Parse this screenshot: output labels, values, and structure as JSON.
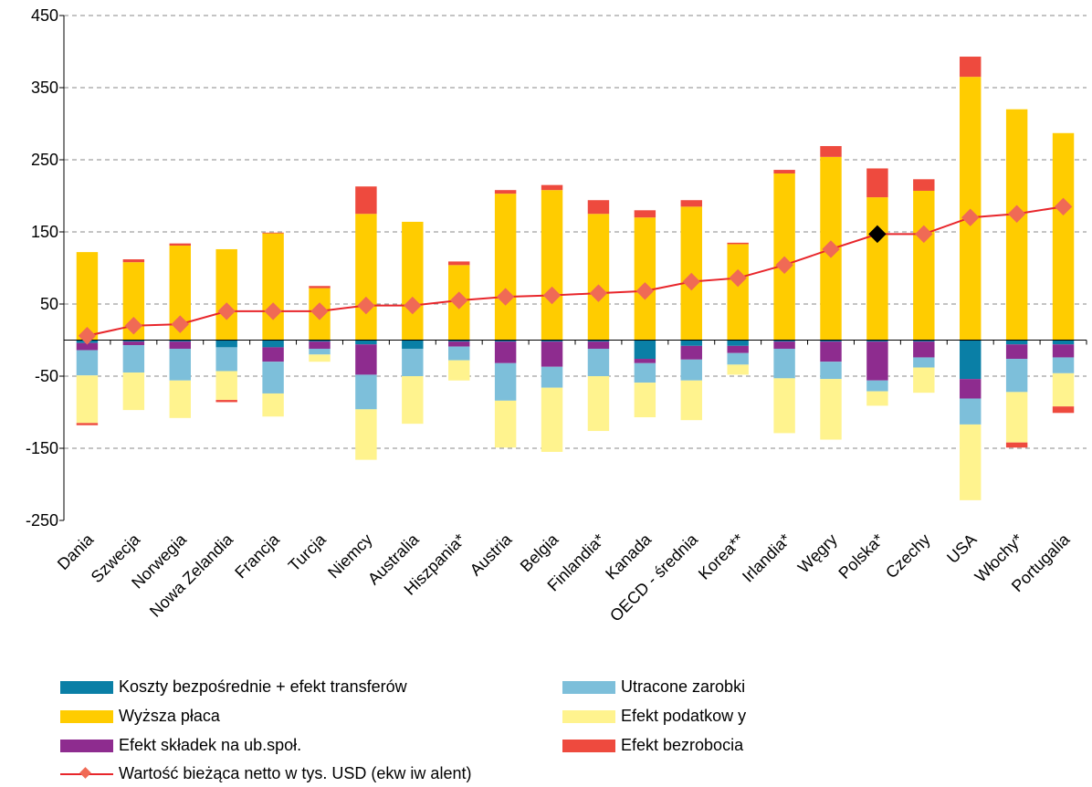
{
  "chart_data": {
    "type": "bar",
    "stacked": true,
    "ylim": [
      -250,
      450
    ],
    "yticks": [
      450,
      350,
      250,
      150,
      50,
      -50,
      -150,
      -250
    ],
    "grid": true,
    "legend_position": "bottom",
    "categories": [
      "Dania",
      "Szwecja",
      "Norwegia",
      "Nowa Zelandia",
      "Francja",
      "Turcja",
      "Niemcy",
      "Australia",
      "Hiszpania*",
      "Austria",
      "Belgia",
      "Finlandia*",
      "Kanada",
      "OECD - średnia",
      "Korea**",
      "Irlandia*",
      "Węgry",
      "Polska*",
      "Czechy",
      "USA",
      "Włochy*",
      "Portugalia"
    ],
    "series": [
      {
        "name": "Koszty bezpośrednie + efekt transferów",
        "color": "#0A7FA6",
        "values": [
          -4,
          -2,
          -2,
          -10,
          -10,
          -2,
          -6,
          -12,
          -2,
          -2,
          -2,
          -2,
          -26,
          -8,
          -8,
          -2,
          -2,
          -2,
          -2,
          -54,
          -6,
          -6
        ]
      },
      {
        "name": "Wyższa płaca",
        "color": "#FFCC00",
        "values": [
          122,
          108,
          131,
          126,
          148,
          72,
          175,
          164,
          104,
          203,
          208,
          175,
          170,
          185,
          133,
          231,
          254,
          198,
          207,
          365,
          320,
          287
        ]
      },
      {
        "name": "Efekt składek na ub.społ.",
        "color": "#8E2C8F",
        "values": [
          -10,
          -5,
          -10,
          0,
          -20,
          -10,
          -42,
          0,
          -7,
          -30,
          -35,
          -10,
          -6,
          -19,
          -10,
          -10,
          -28,
          -54,
          -22,
          -27,
          -20,
          -18
        ]
      },
      {
        "name": "Utracone zarobki",
        "color": "#7DBFDA",
        "values": [
          -35,
          -38,
          -44,
          -33,
          -44,
          -8,
          -48,
          -38,
          -19,
          -52,
          -29,
          -38,
          -27,
          -29,
          -16,
          -41,
          -24,
          -15,
          -14,
          -36,
          -46,
          -22
        ]
      },
      {
        "name": "Efekt podatkowy",
        "color": "#FFF38E",
        "values": [
          -66,
          -52,
          -52,
          -40,
          -32,
          -10,
          -70,
          -66,
          -28,
          -65,
          -89,
          -76,
          -48,
          -55,
          -14,
          -76,
          -84,
          -20,
          -35,
          -105,
          -70,
          -46
        ]
      },
      {
        "name": "Efekt bezrobocia",
        "color": "#EE4A3E",
        "values": [
          -3,
          4,
          3,
          -3,
          1,
          3,
          38,
          0,
          5,
          5,
          7,
          19,
          10,
          9,
          2,
          5,
          15,
          40,
          16,
          28,
          -7,
          -9
        ]
      }
    ],
    "line_series": {
      "name": "Wartość bieżąca netto w tys. USD (ekwiwalent)",
      "color": "#E8262B",
      "marker_color": "#F06A55",
      "highlight_category": "Polska*",
      "highlight_color": "#000000",
      "values": [
        6,
        20,
        22,
        40,
        40,
        40,
        48,
        48,
        55,
        60,
        62,
        65,
        68,
        81,
        86,
        104,
        126,
        147,
        147,
        170,
        175,
        185
      ]
    }
  },
  "legend": {
    "items": [
      {
        "key": "koszty",
        "label": "Koszty bezpośrednie + efekt transferów",
        "color": "#0A7FA6"
      },
      {
        "key": "utracone",
        "label": "Utracone zarobki",
        "color": "#7DBFDA"
      },
      {
        "key": "placa",
        "label": "Wyższa płaca",
        "color": "#FFCC00"
      },
      {
        "key": "podatek",
        "label": "Efekt podatkow y",
        "color": "#FFF38E"
      },
      {
        "key": "skladki",
        "label": "Efekt składek na ub.społ.",
        "color": "#8E2C8F"
      },
      {
        "key": "bezrobocie",
        "label": "Efekt bezrobocia",
        "color": "#EE4A3E"
      },
      {
        "key": "npv",
        "label": "Wartość bieżąca netto w  tys. USD (ekw iw alent)",
        "color": "#E8262B"
      }
    ]
  }
}
